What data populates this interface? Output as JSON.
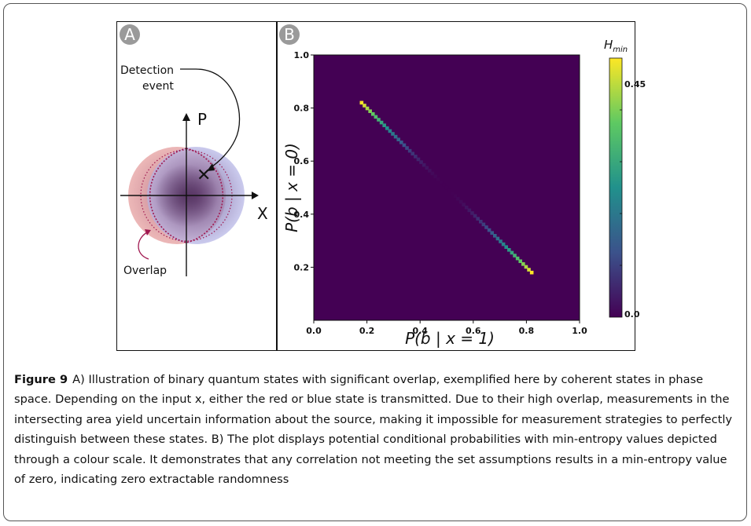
{
  "figure": {
    "label": "Figure 9",
    "caption": "A) Illustration of binary quantum states with significant overlap, exemplified here by coherent states in phase space. Depending on the input x, either the red or blue state is transmitted. Due to their high overlap, measurements in the intersecting area yield uncertain information about the source, making it impossible for measurement strategies to perfectly distinguish between these states. B) The plot displays potential conditional probabilities with min-entropy values depicted through a colour scale. It demonstrates that any correlation not meeting the set assumptions results in a min-entropy value of zero, indicating zero extractable randomness"
  },
  "panel_a": {
    "badge": "A",
    "detection_label_line1": "Detection",
    "detection_label_line2": "event",
    "p_axis_label": "P",
    "x_axis_label": "X",
    "overlap_label": "Overlap",
    "colors": {
      "red_state": "#d98080",
      "blue_state": "#8f8fd6",
      "overlap_outline": "#a01850"
    }
  },
  "panel_b": {
    "badge": "B",
    "colorbar_title_main": "H",
    "colorbar_title_sub": "min",
    "colorbar_ticks": [
      "0.45",
      "0.0"
    ]
  },
  "chart_data": {
    "type": "heatmap",
    "xlabel": "P(b | x = 1)",
    "ylabel": "P(b | x = 0)",
    "xlim": [
      0.0,
      1.0
    ],
    "ylim": [
      0.0,
      1.0
    ],
    "x_ticks": [
      "0.0",
      "0.2",
      "0.4",
      "0.6",
      "0.8",
      "1.0"
    ],
    "y_ticks": [
      "0.2",
      "0.4",
      "0.6",
      "0.8",
      "1.0"
    ],
    "colorbar_range": [
      0.0,
      0.5
    ],
    "colormap": "viridis",
    "background_value": 0.0,
    "nonzero_band": {
      "description_line": "x + y = 1",
      "x_start": 0.18,
      "x_end": 0.82,
      "value_at_ends": 0.5,
      "value_at_center": 0.0
    }
  }
}
